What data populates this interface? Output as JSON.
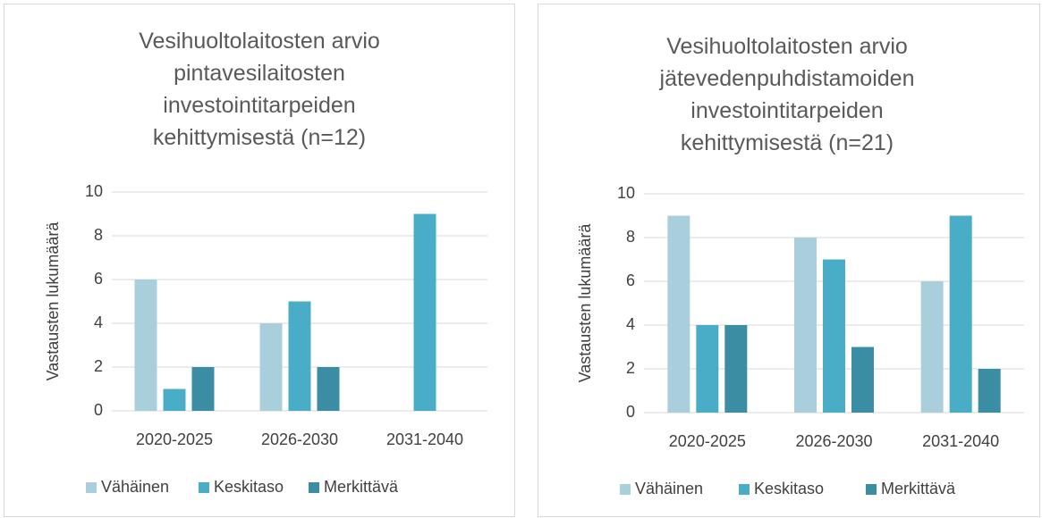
{
  "chart_data": [
    {
      "type": "bar",
      "title": "Vesihuoltolaitosten arvio pintavesilaitosten investointitarpeiden kehittymisestä (n=12)",
      "y_label": "Vastausten lukumäärä",
      "categories": [
        "2020-2025",
        "2026-2030",
        "2031-2040"
      ],
      "series": [
        {
          "name": "Vähäinen",
          "color": "#a9cfdc",
          "values": [
            6,
            4,
            0
          ]
        },
        {
          "name": "Keskitaso",
          "color": "#4aadc7",
          "values": [
            1,
            5,
            9
          ]
        },
        {
          "name": "Merkittävä",
          "color": "#3a8da3",
          "values": [
            2,
            2,
            0
          ]
        }
      ],
      "ylim": [
        0,
        10
      ],
      "yticks": [
        0,
        2,
        4,
        6,
        8,
        10
      ],
      "grid": true,
      "legend": "bottom"
    },
    {
      "type": "bar",
      "title": "Vesihuoltolaitosten arvio jätevedenpuhdistamoiden investointitarpeiden kehittymisestä (n=21)",
      "y_label": "Vastausten lukumäärä",
      "categories": [
        "2020-2025",
        "2026-2030",
        "2031-2040"
      ],
      "series": [
        {
          "name": "Vähäinen",
          "color": "#a9cfdc",
          "values": [
            9,
            8,
            6
          ]
        },
        {
          "name": "Keskitaso",
          "color": "#4aadc7",
          "values": [
            4,
            7,
            9
          ]
        },
        {
          "name": "Merkittävä",
          "color": "#3a8da3",
          "values": [
            4,
            3,
            2
          ]
        }
      ],
      "ylim": [
        0,
        10
      ],
      "yticks": [
        0,
        2,
        4,
        6,
        8,
        10
      ],
      "grid": true,
      "legend": "bottom"
    }
  ]
}
